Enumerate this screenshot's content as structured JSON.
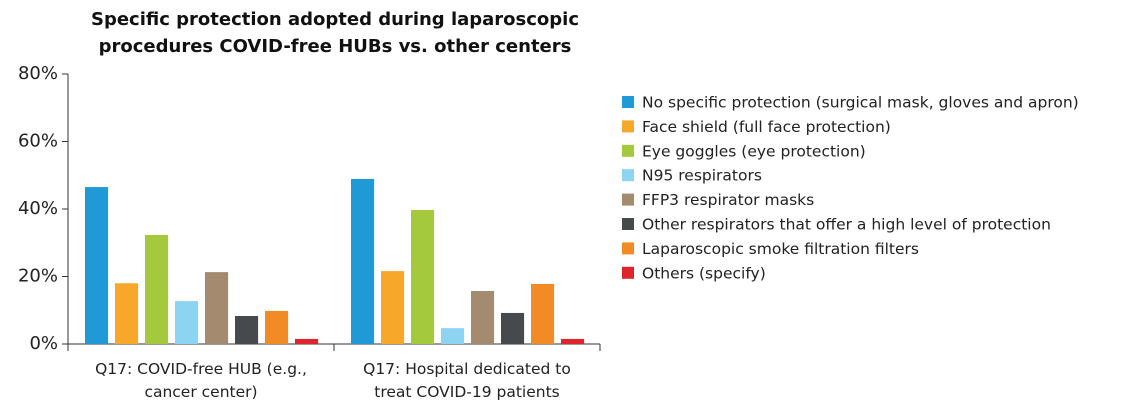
{
  "chart_data": {
    "type": "bar",
    "title": "Specific protection adopted during laparoscopic procedures COVID-free HUBs vs. other centers",
    "categories": [
      "Q17: COVID-free HUB (e.g., cancer center)",
      "Q17: Hospital dedicated to treat COVID-19 patients"
    ],
    "series": [
      {
        "name": "No specific protection (surgical mask, gloves and apron)",
        "color": "#1f9ad6",
        "values": [
          46.5,
          48.9
        ]
      },
      {
        "name": "Face shield (full face protection)",
        "color": "#f7a82a",
        "values": [
          18,
          21.6
        ]
      },
      {
        "name": "Eye goggles (eye protection)",
        "color": "#a5c93d",
        "values": [
          32.3,
          39.7
        ]
      },
      {
        "name": "N95 respirators",
        "color": "#8dd4f2",
        "values": [
          12.7,
          4.7
        ]
      },
      {
        "name": "FFP3 respirator masks",
        "color": "#a48a6e",
        "values": [
          21.3,
          15.7
        ]
      },
      {
        "name": "Other respirators that offer a high level of protection",
        "color": "#464a4d",
        "values": [
          8.3,
          9.2
        ]
      },
      {
        "name": "Laparoscopic smoke filtration filters",
        "color": "#f28a26",
        "values": [
          9.8,
          17.8
        ]
      },
      {
        "name": "Others (specify)",
        "color": "#e0242b",
        "values": [
          1.5,
          1.5
        ]
      }
    ],
    "ylim": [
      0,
      80
    ],
    "yticks": [
      {
        "value": 0,
        "label": "0%"
      },
      {
        "value": 20,
        "label": "20%"
      },
      {
        "value": 40,
        "label": "40%"
      },
      {
        "value": 60,
        "label": "60%"
      },
      {
        "value": 80,
        "label": "80%"
      }
    ],
    "grid": false,
    "legend": "right"
  }
}
